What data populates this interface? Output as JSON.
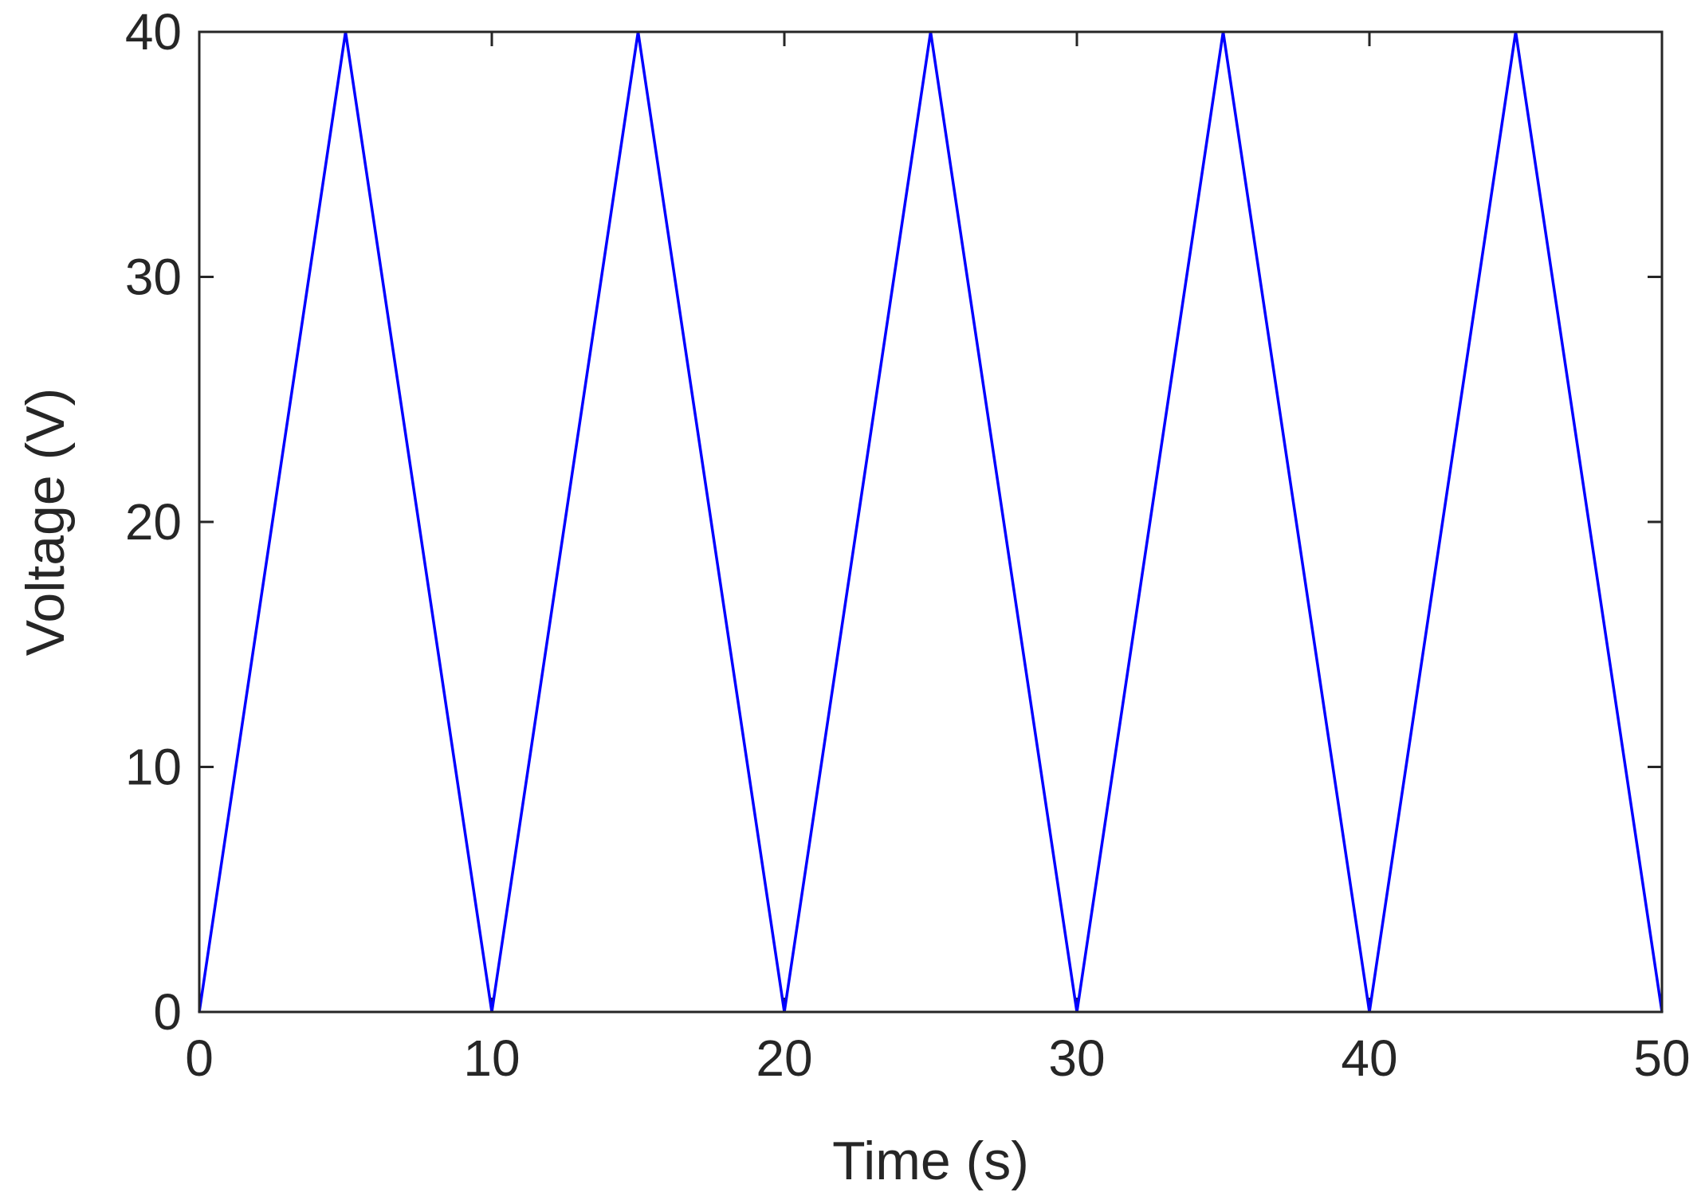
{
  "chart_data": {
    "type": "line",
    "title": "",
    "xlabel": "Time (s)",
    "ylabel": "Voltage (V)",
    "xlim": [
      0,
      50
    ],
    "ylim": [
      0,
      40
    ],
    "xticks": [
      "0",
      "10",
      "20",
      "30",
      "40",
      "50"
    ],
    "yticks": [
      "0",
      "10",
      "20",
      "30",
      "40"
    ],
    "grid": false,
    "box": true,
    "series": [
      {
        "color": "#0000ff",
        "x": [
          0,
          5,
          10,
          15,
          20,
          25,
          30,
          35,
          40,
          45,
          50
        ],
        "y": [
          0,
          40,
          0,
          40,
          0,
          40,
          0,
          40,
          0,
          40,
          0
        ]
      }
    ]
  }
}
